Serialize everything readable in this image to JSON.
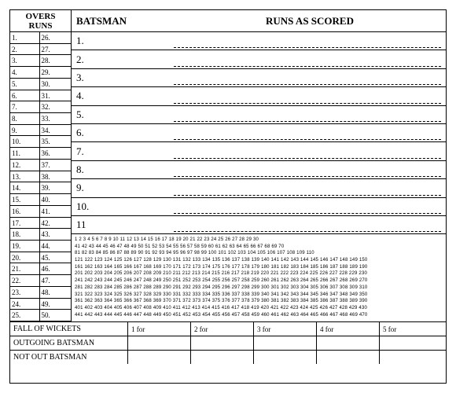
{
  "overs": {
    "header_line1": "OVERS",
    "header_line2": "RUNS",
    "left_numbers": [
      "1.",
      "2.",
      "3.",
      "4.",
      "5.",
      "6.",
      "7.",
      "8.",
      "9.",
      "10.",
      "11.",
      "12.",
      "13.",
      "14.",
      "15.",
      "16.",
      "17.",
      "18.",
      "19.",
      "20.",
      "21.",
      "22.",
      "23.",
      "24.",
      "25."
    ],
    "right_numbers": [
      "26.",
      "27.",
      "28.",
      "29.",
      "30.",
      "31.",
      "32.",
      "33.",
      "34.",
      "35.",
      "36.",
      "37.",
      "38.",
      "39.",
      "40.",
      "41.",
      "42.",
      "43.",
      "44.",
      "45.",
      "46.",
      "47.",
      "48.",
      "49.",
      "50."
    ]
  },
  "batsman": {
    "header": "BATSMAN",
    "runs_header": "RUNS AS SCORED",
    "rows": [
      "1.",
      "2.",
      "3.",
      "4.",
      "5.",
      "6.",
      "7.",
      "8.",
      "9.",
      "10.",
      "11"
    ]
  },
  "runs_grid_lines": [
    "1   2   3   4   5   6   7   8   9   10  11  12  13  14  15  16  17  18  19  20  21  22  23  24  25  26  27  28  29  30",
    "41  42  43  44  45  46  47  48  49  50  51  52  53  54  55  56  57  58  59  60  61  62  63  64  65  66  67  68  69  70",
    "81  82  83  84  85  86  87  88  89  90  91  92  93  94  95  96  97  98  99 100 101 102 103 104 105 106 107 108 109 110",
    "121 122 123 124 125 126 127 128 129 130 131 132 133 134 135 136 137 138 139 140 141 142 143 144 145 146 147 148 149 150",
    "161 162 163 164 165 166 167 168 169 170 171 172 173 174 175 176 177 178 179 180 181 182 183 184 185 186 187 188 189 190",
    "201 202 203 204 205 206 207 208 209 210 211 212 213 214 215 216 217 218 219 220 221 222 223 224 225 226 227 228 229 230",
    "241 242 243 244 245 246 247 248 249 250 251 252 253 254 255 256 257 258 259 260 261 262 263 264 265 266 267 268 269 270",
    "281 282 283 284 285 286 287 288 289 290 291 292 293 294 295 296 297 298 299 300 301 302 303 304 305 306 307 308 309 310",
    "321 322 323 324 325 326 327 328 329 330 331 332 333 334 335 336 337 338 339 340 341 342 343 344 345 346 347 348 349 350",
    "361 362 363 364 365 366 367 368 369 370 371 372 373 374 375 376 377 378 379 380 381 382 383 384 385 386 387 388 389 390",
    "401 402 403 404 405 406 407 408 409 410 411 412 413 414 415 416 417 418 419 420 421 422 423 424 425 426 427 428 429 430",
    "441 442 443 444 445 446 447 448 449 450 451 452 453 454 455 456 457 458 459 460 461 462 463 464 465 466 467 468 469 470"
  ],
  "bottom": {
    "fall_of_wickets": "FALL OF WICKETS",
    "outgoing_batsman": "OUTGOING BATSMAN",
    "not_out_batsman": "NOT OUT BATSMAN",
    "wicket_labels": [
      "1 for",
      "2 for",
      "3 for",
      "4 for",
      "5 for"
    ]
  }
}
